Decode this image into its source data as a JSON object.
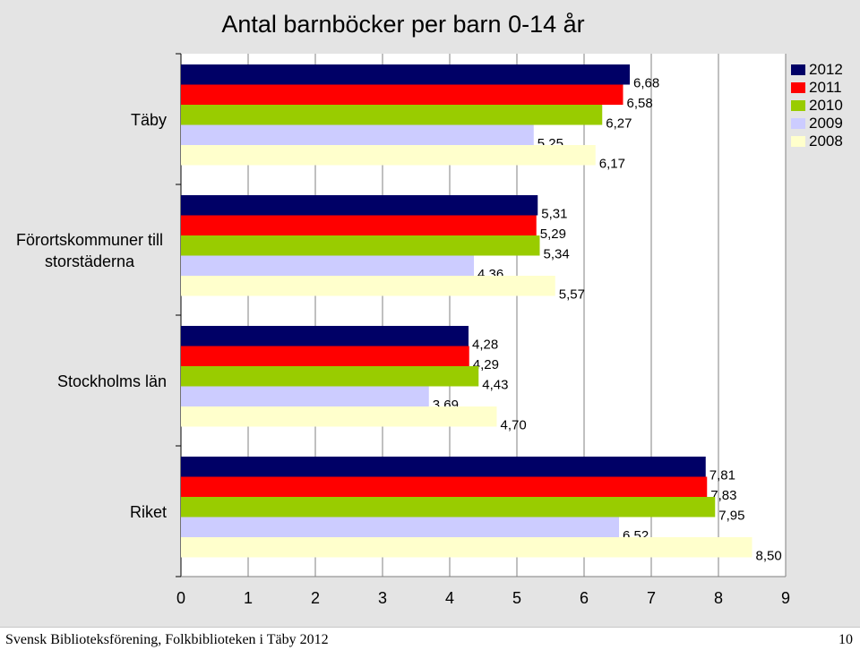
{
  "chart_data": {
    "type": "bar",
    "orientation": "horizontal",
    "title": "Antal barnböcker per barn 0-14 år",
    "categories": [
      "Täby",
      "Förortskommuner till storstäderna",
      "Stockholms län",
      "Riket"
    ],
    "category_lines": [
      [
        "Täby"
      ],
      [
        "Förortskommuner till",
        "storstäderna"
      ],
      [
        "Stockholms län"
      ],
      [
        "Riket"
      ]
    ],
    "series": [
      {
        "name": "2012",
        "color": "#000066",
        "values": [
          6.68,
          5.31,
          4.28,
          7.81
        ],
        "labels": [
          "6,68",
          "5,31",
          "4,28",
          "7,81"
        ]
      },
      {
        "name": "2011",
        "color": "#ff0000",
        "values": [
          6.58,
          5.29,
          4.29,
          7.83
        ],
        "labels": [
          "6,58",
          "5,29",
          "4,29",
          "7,83"
        ]
      },
      {
        "name": "2010",
        "color": "#99cc00",
        "values": [
          6.27,
          5.34,
          4.43,
          7.95
        ],
        "labels": [
          "6,27",
          "5,34",
          "4,43",
          "7,95"
        ]
      },
      {
        "name": "2009",
        "color": "#ccccff",
        "values": [
          5.25,
          4.36,
          3.69,
          6.52
        ],
        "labels": [
          "5,25",
          "4,36",
          "3,69",
          "6,52"
        ]
      },
      {
        "name": "2008",
        "color": "#ffffcc",
        "values": [
          6.17,
          5.57,
          4.7,
          8.5
        ],
        "labels": [
          "6,17",
          "5,57",
          "4,70",
          "8,50"
        ]
      }
    ],
    "xlim": [
      0,
      9
    ],
    "xticks": [
      "0",
      "1",
      "2",
      "3",
      "4",
      "5",
      "6",
      "7",
      "8",
      "9"
    ],
    "grid": true,
    "legend_position": "top-right",
    "xlabel": "",
    "ylabel": ""
  },
  "footer": {
    "text": "Svensk Biblioteksförening, Folkbiblioteken i Täby 2012",
    "page_number": "10"
  }
}
